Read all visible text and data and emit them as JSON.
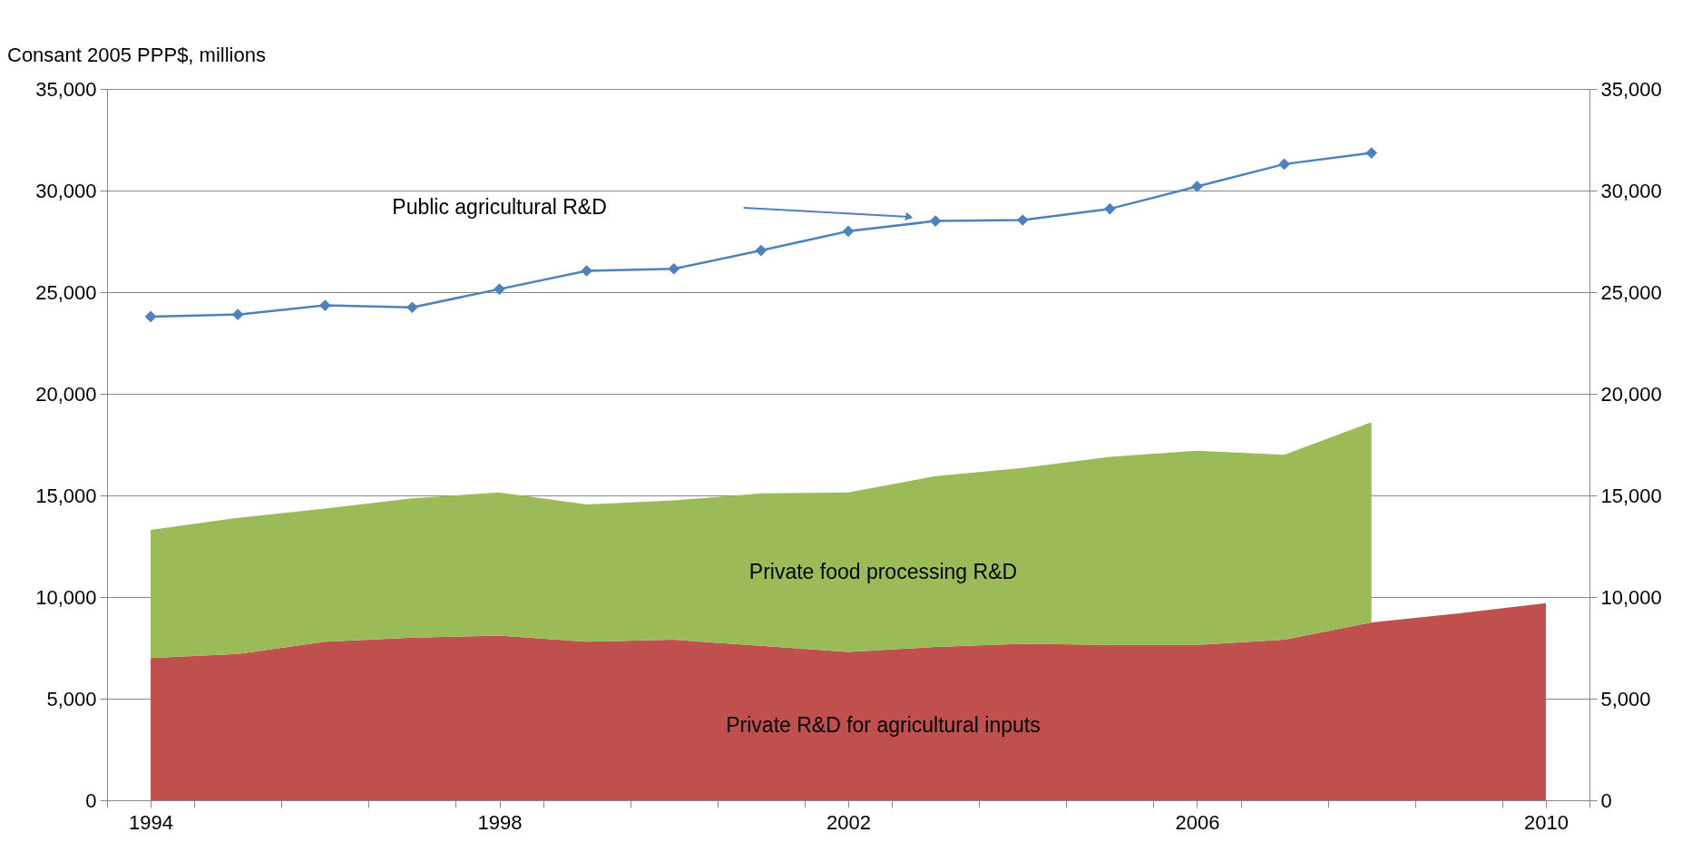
{
  "chart_data": {
    "type": "area",
    "ylabel": "Consant 2005 PPP$, millions",
    "x": [
      1994,
      1995,
      1996,
      1997,
      1998,
      1999,
      2000,
      2001,
      2002,
      2003,
      2004,
      2005,
      2006,
      2007,
      2008,
      2009,
      2010
    ],
    "stacked": true,
    "series": [
      {
        "name": "Private R&D for agricultural inputs",
        "color": "#c0504d",
        "values": [
          7000,
          7200,
          7800,
          8000,
          8100,
          7800,
          7900,
          7600,
          7300,
          7550,
          7700,
          7650,
          7650,
          7900,
          8750,
          9200,
          9700
        ]
      },
      {
        "name": "Private food processing R&D",
        "color": "#9bbb59",
        "values": [
          6300,
          6700,
          6550,
          6850,
          7050,
          6750,
          6850,
          7500,
          7850,
          8400,
          8650,
          9250,
          9550,
          9100,
          9850,
          null,
          null
        ]
      },
      {
        "name": "Public agricultural  R&D",
        "type": "line",
        "color": "#4f81bd",
        "marker": "diamond",
        "values": [
          23800,
          23900,
          24350,
          24250,
          25150,
          26050,
          26150,
          27050,
          28000,
          28500,
          28550,
          29100,
          30200,
          31300,
          31850,
          null,
          null
        ]
      }
    ],
    "xlim": [
      1993.5,
      2010.5
    ],
    "xticks": [
      {
        "value": 1993.5,
        "label": null
      },
      1994,
      {
        "value": 1994.5,
        "label": null
      },
      {
        "value": 1995.5,
        "label": null
      },
      {
        "value": 1996.5,
        "label": null
      },
      {
        "value": 1997.5,
        "label": null
      },
      1998,
      {
        "value": 1998.5,
        "label": null
      },
      {
        "value": 1999.5,
        "label": null
      },
      {
        "value": 2000.5,
        "label": null
      },
      {
        "value": 2001.5,
        "label": null
      },
      2002,
      {
        "value": 2002.5,
        "label": null
      },
      {
        "value": 2003.5,
        "label": null
      },
      {
        "value": 2004.5,
        "label": null
      },
      {
        "value": 2005.5,
        "label": null
      },
      2006,
      {
        "value": 2006.5,
        "label": null
      },
      {
        "value": 2007.5,
        "label": null
      },
      {
        "value": 2008.5,
        "label": null
      },
      {
        "value": 2009.5,
        "label": null
      },
      2010,
      {
        "value": 2010.5,
        "label": null
      }
    ],
    "ylim": [
      0,
      35000
    ],
    "yticks": [
      {
        "value": 0,
        "label": "0"
      },
      {
        "value": 5000,
        "label": "5,000"
      },
      {
        "value": 10000,
        "label": "10,000"
      },
      {
        "value": 15000,
        "label": "15,000"
      },
      {
        "value": 20000,
        "label": "20,000"
      },
      {
        "value": 25000,
        "label": "25,000"
      },
      {
        "value": 30000,
        "label": "30,000"
      },
      {
        "value": 35000,
        "label": "35,000"
      }
    ],
    "y2lim": [
      0,
      35000
    ],
    "y2ticks": [
      {
        "value": 0,
        "label": "0"
      },
      {
        "value": 5000,
        "label": "5,000"
      },
      {
        "value": 10000,
        "label": "10,000"
      },
      {
        "value": 15000,
        "label": "15,000"
      },
      {
        "value": 20000,
        "label": "20,000"
      },
      {
        "value": 25000,
        "label": "25,000"
      },
      {
        "value": 30000,
        "label": "30,000"
      },
      {
        "value": 35000,
        "label": "35,000"
      }
    ],
    "grid": "y",
    "legend": false
  }
}
